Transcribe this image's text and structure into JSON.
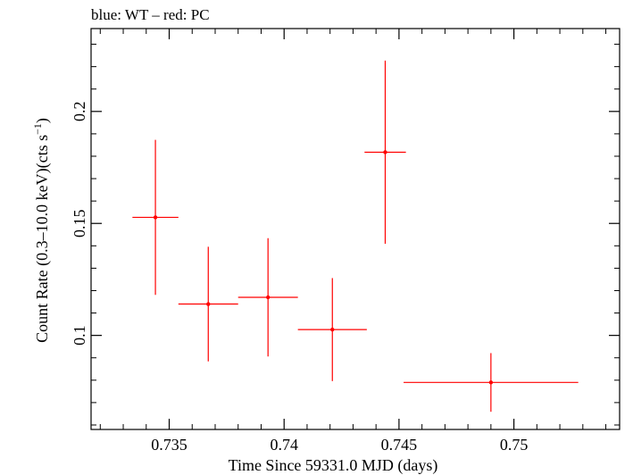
{
  "chart_data": {
    "type": "scatter",
    "title": "blue: WT – red: PC",
    "xlabel": "Time Since 59331.0 MJD (days)",
    "ylabel": "Count Rate (0.3–10.0 keV)(cts s",
    "ylabel_superscript": "−1",
    "ylabel_suffix": ")",
    "xlim": [
      0.7316,
      0.7546
    ],
    "ylim": [
      0.058,
      0.237
    ],
    "x_ticks": [
      0.735,
      0.74,
      0.745,
      0.75
    ],
    "x_tick_labels": [
      "0.735",
      "0.74",
      "0.745",
      "0.75"
    ],
    "y_ticks": [
      0.1,
      0.15,
      0.2
    ],
    "y_tick_labels": [
      "0.1",
      "0.15",
      "0.2"
    ],
    "grid": false,
    "series": [
      {
        "color": "#ff0000",
        "points": [
          {
            "x": 0.7344,
            "xerr_low": 0.001,
            "xerr_high": 0.001,
            "y": 0.1527,
            "yerr_low": 0.0346,
            "yerr_high": 0.0346
          },
          {
            "x": 0.7367,
            "xerr_low": 0.0013,
            "xerr_high": 0.0013,
            "y": 0.114,
            "yerr_low": 0.0256,
            "yerr_high": 0.0256
          },
          {
            "x": 0.7393,
            "xerr_low": 0.0013,
            "xerr_high": 0.0013,
            "y": 0.117,
            "yerr_low": 0.0264,
            "yerr_high": 0.0264
          },
          {
            "x": 0.7421,
            "xerr_low": 0.0015,
            "xerr_high": 0.0015,
            "y": 0.1026,
            "yerr_low": 0.023,
            "yerr_high": 0.023
          },
          {
            "x": 0.7444,
            "xerr_low": 0.0009,
            "xerr_high": 0.0009,
            "y": 0.1818,
            "yerr_low": 0.0409,
            "yerr_high": 0.0409
          },
          {
            "x": 0.749,
            "xerr_low": 0.0038,
            "xerr_high": 0.0038,
            "y": 0.079,
            "yerr_low": 0.0131,
            "yerr_high": 0.0131
          }
        ]
      }
    ]
  }
}
